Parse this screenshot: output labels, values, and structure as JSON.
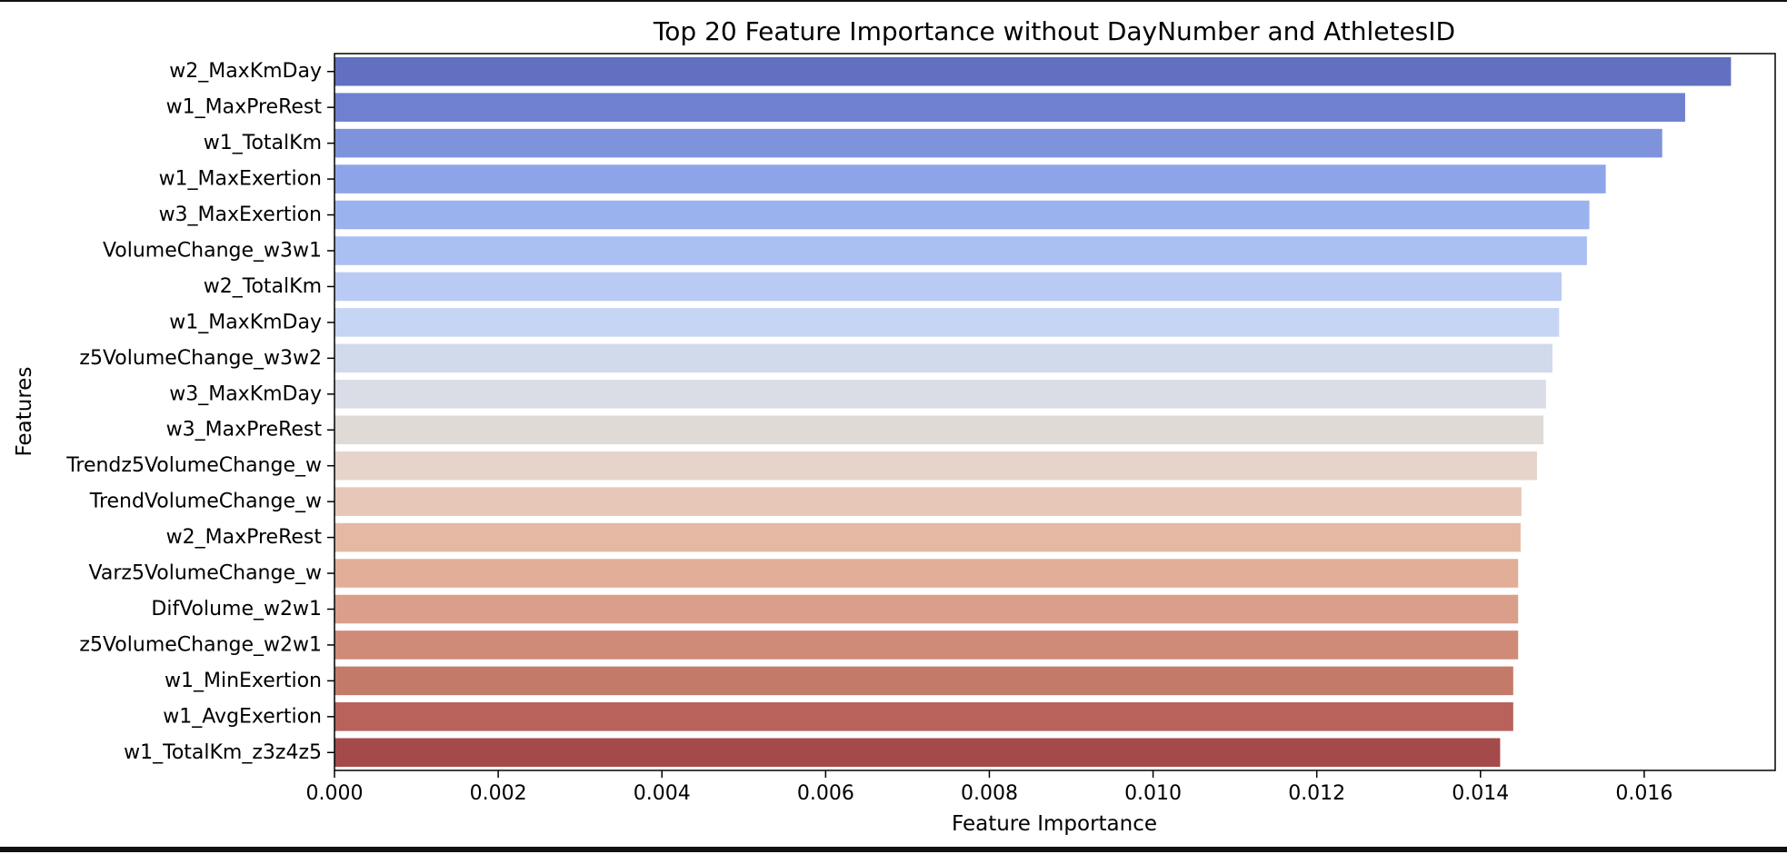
{
  "chart_data": {
    "type": "bar",
    "orientation": "horizontal",
    "title": "Top 20 Feature Importance without DayNumber and AthletesID",
    "xlabel": "Feature Importance",
    "ylabel": "Features",
    "xlim": [
      0,
      0.0176
    ],
    "xticks": [
      0.0,
      0.002,
      0.004,
      0.006,
      0.008,
      0.01,
      0.012,
      0.014,
      0.016
    ],
    "xtick_labels": [
      "0.000",
      "0.002",
      "0.004",
      "0.006",
      "0.008",
      "0.010",
      "0.012",
      "0.014",
      "0.016"
    ],
    "grid": false,
    "legend": "none",
    "palette": "coolwarm",
    "categories": [
      "w2_MaxKmDay",
      "w1_MaxPreRest",
      "w1_TotalKm",
      "w1_MaxExertion",
      "w3_MaxExertion",
      "VolumeChange_w3w1",
      "w2_TotalKm",
      "w1_MaxKmDay",
      "z5VolumeChange_w3w2",
      "w3_MaxKmDay",
      "w3_MaxPreRest",
      "Trendz5VolumeChange_w",
      "TrendVolumeChange_w",
      "w2_MaxPreRest",
      "Varz5VolumeChange_w",
      "DifVolume_w2w1",
      "z5VolumeChange_w2w1",
      "w1_MinExertion",
      "w1_AvgExertion",
      "w1_TotalKm_z3z4z5"
    ],
    "values": [
      0.01706,
      0.0165,
      0.01622,
      0.01553,
      0.01533,
      0.0153,
      0.01499,
      0.01496,
      0.01488,
      0.0148,
      0.01477,
      0.01469,
      0.0145,
      0.01449,
      0.01446,
      0.01446,
      0.01446,
      0.0144,
      0.0144,
      0.01424
    ],
    "colors": [
      "#6170c0",
      "#7080d0",
      "#7e93db",
      "#8da5e8",
      "#9ab2ee",
      "#aabff2",
      "#b9cbf4",
      "#c6d5f3",
      "#d1daeb",
      "#dadde6",
      "#e0dad6",
      "#e6d4ca",
      "#e6c7b8",
      "#e4b8a3",
      "#e2ae97",
      "#d99f8a",
      "#d08a78",
      "#c47a69",
      "#b8625b",
      "#a44a4b"
    ]
  }
}
